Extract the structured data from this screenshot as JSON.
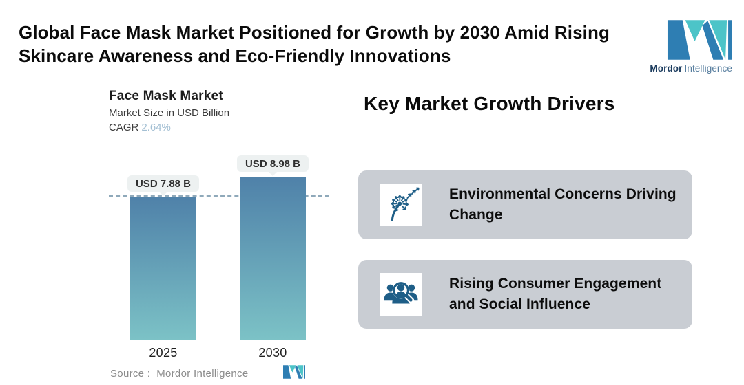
{
  "header": {
    "title_lines": [
      "Global Face Mask Market Positioned for Growth by 2030 Amid Rising",
      "Skincare Awareness and Eco-Friendly Innovations"
    ]
  },
  "brand": {
    "name_bold": "Mordor",
    "name_light": "Intelligence"
  },
  "chart": {
    "title": "Face Mask Market",
    "subtitle": "Market Size in USD Billion",
    "cagr_label": "CAGR",
    "cagr_value": "2.64%",
    "source_label": "Source :  Mordor Intelligence"
  },
  "chart_data": {
    "type": "bar",
    "title": "Face Mask Market",
    "ylabel": "Market Size in USD Billion",
    "categories": [
      "2025",
      "2030"
    ],
    "values": [
      7.88,
      8.98
    ],
    "value_labels": [
      "USD 7.88 B",
      "USD 8.98 B"
    ],
    "unit": "USD Billion",
    "cagr_percent": 2.64,
    "reference_line": 7.88,
    "ylim": [
      0,
      10.4
    ],
    "grid": false,
    "legend": "none",
    "bar_gradient": [
      "#4f81a9",
      "#7cc2c6"
    ],
    "reference_line_color": "#8fa9ba"
  },
  "drivers": {
    "heading": "Key Market Growth Drivers",
    "cards": [
      {
        "icon": "dandelion-icon",
        "text": "Environmental Concerns Driving Change"
      },
      {
        "icon": "consumer-search-icon",
        "text": "Rising Consumer Engagement and Social Influence"
      }
    ]
  },
  "colors": {
    "brand_blue": "#2e7eb3",
    "brand_teal": "#4cc4c8",
    "brand_navy": "#1d3d5f",
    "brand_gray_blue": "#567d9e",
    "card_bg": "#c9cdd3",
    "icon_blue": "#1e5e87",
    "cagr_value": "#a3bfd3"
  }
}
